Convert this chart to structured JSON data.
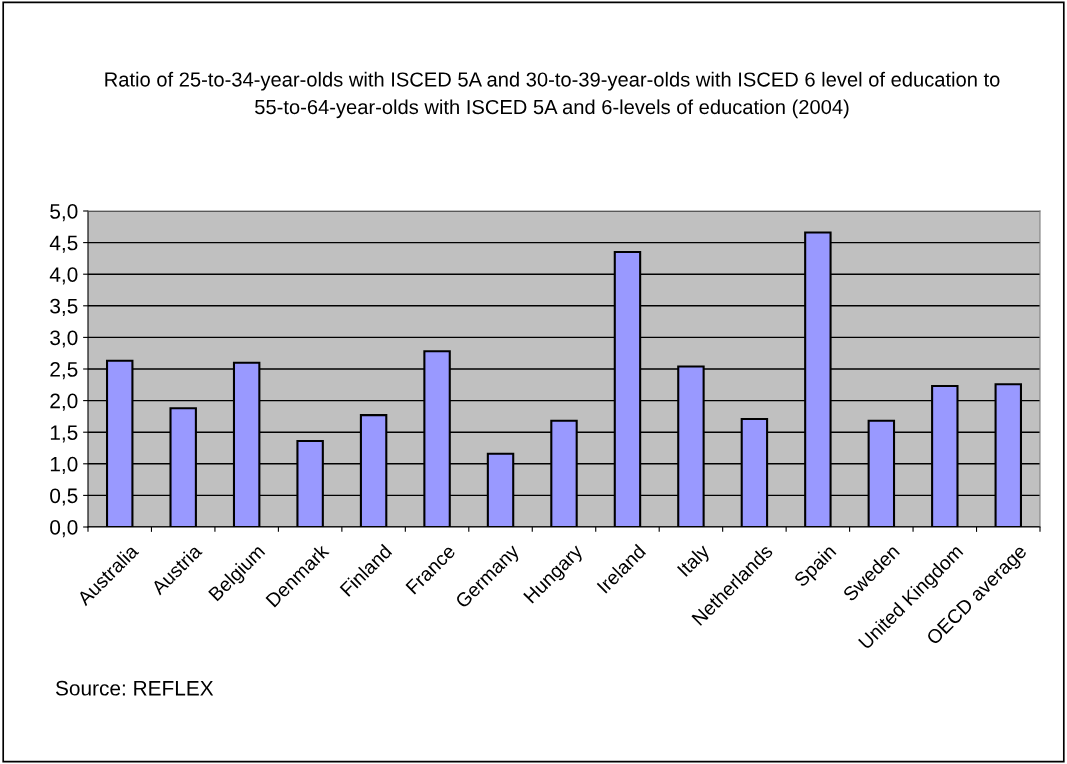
{
  "chart_data": {
    "type": "bar",
    "title": "Ratio of 25-to-34-year-olds with ISCED 5A and 30-to-39-year-olds with ISCED 6 level of education to 55-to-64-year-olds with ISCED 5A and 6-levels of education (2004)",
    "categories": [
      "Australia",
      "Austria",
      "Belgium",
      "Denmark",
      "Finland",
      "France",
      "Germany",
      "Hungary",
      "Ireland",
      "Italy",
      "Netherlands",
      "Spain",
      "Sweden",
      "United Kingdom",
      "OECD average"
    ],
    "values": [
      2.63,
      1.88,
      2.6,
      1.36,
      1.77,
      2.78,
      1.16,
      1.68,
      4.35,
      2.54,
      1.71,
      4.66,
      1.68,
      2.23,
      2.26
    ],
    "color": "#9999ff",
    "ylim": [
      0,
      5
    ],
    "yticks": [
      {
        "value": 0,
        "label": "0,0"
      },
      {
        "value": 0.5,
        "label": "0,5"
      },
      {
        "value": 1,
        "label": "1,0"
      },
      {
        "value": 1.5,
        "label": "1,5"
      },
      {
        "value": 2,
        "label": "2,0"
      },
      {
        "value": 2.5,
        "label": "2,5"
      },
      {
        "value": 3,
        "label": "3,0"
      },
      {
        "value": 3.5,
        "label": "3,5"
      },
      {
        "value": 4,
        "label": "4,0"
      },
      {
        "value": 4.5,
        "label": "4,5"
      },
      {
        "value": 5,
        "label": "5,0"
      }
    ],
    "grid": "y",
    "annotations": [
      "Source: REFLEX"
    ]
  }
}
